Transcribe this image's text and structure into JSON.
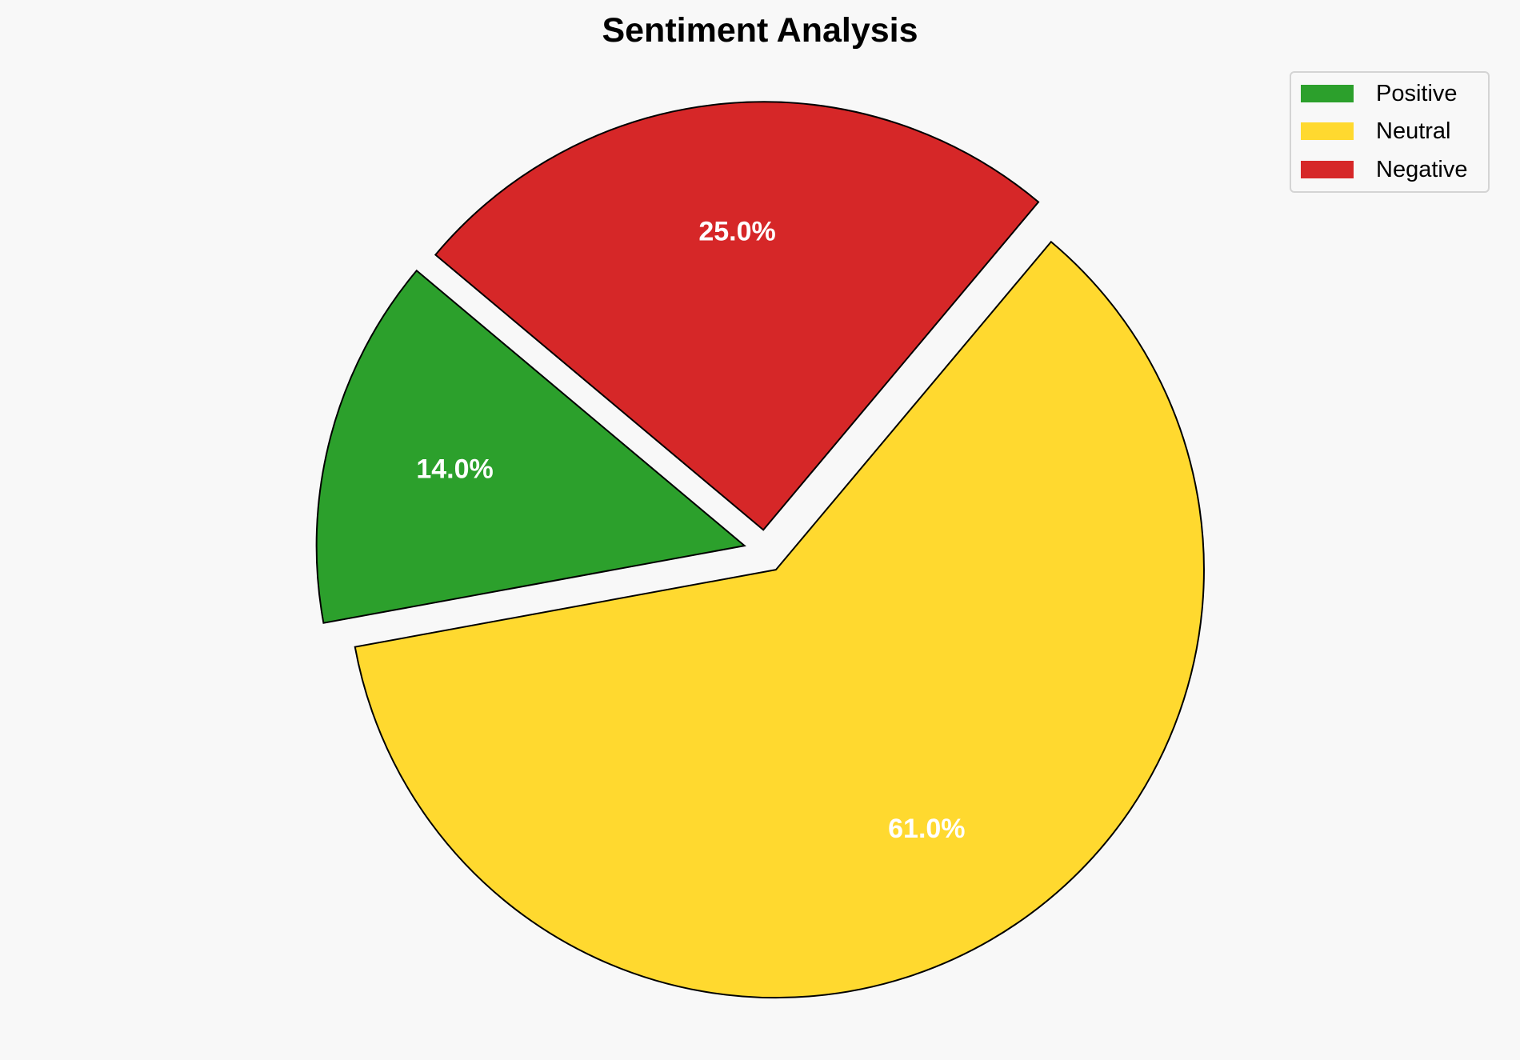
{
  "chart_data": {
    "type": "pie",
    "title": "Sentiment Analysis",
    "categories": [
      "Positive",
      "Neutral",
      "Negative"
    ],
    "values": [
      14.0,
      61.0,
      25.0
    ],
    "labels": [
      "14.0%",
      "61.0%",
      "25.0%"
    ],
    "colors": [
      "#2ca02c",
      "#ffd92f",
      "#d62728"
    ],
    "legend_placement": "top-right"
  }
}
